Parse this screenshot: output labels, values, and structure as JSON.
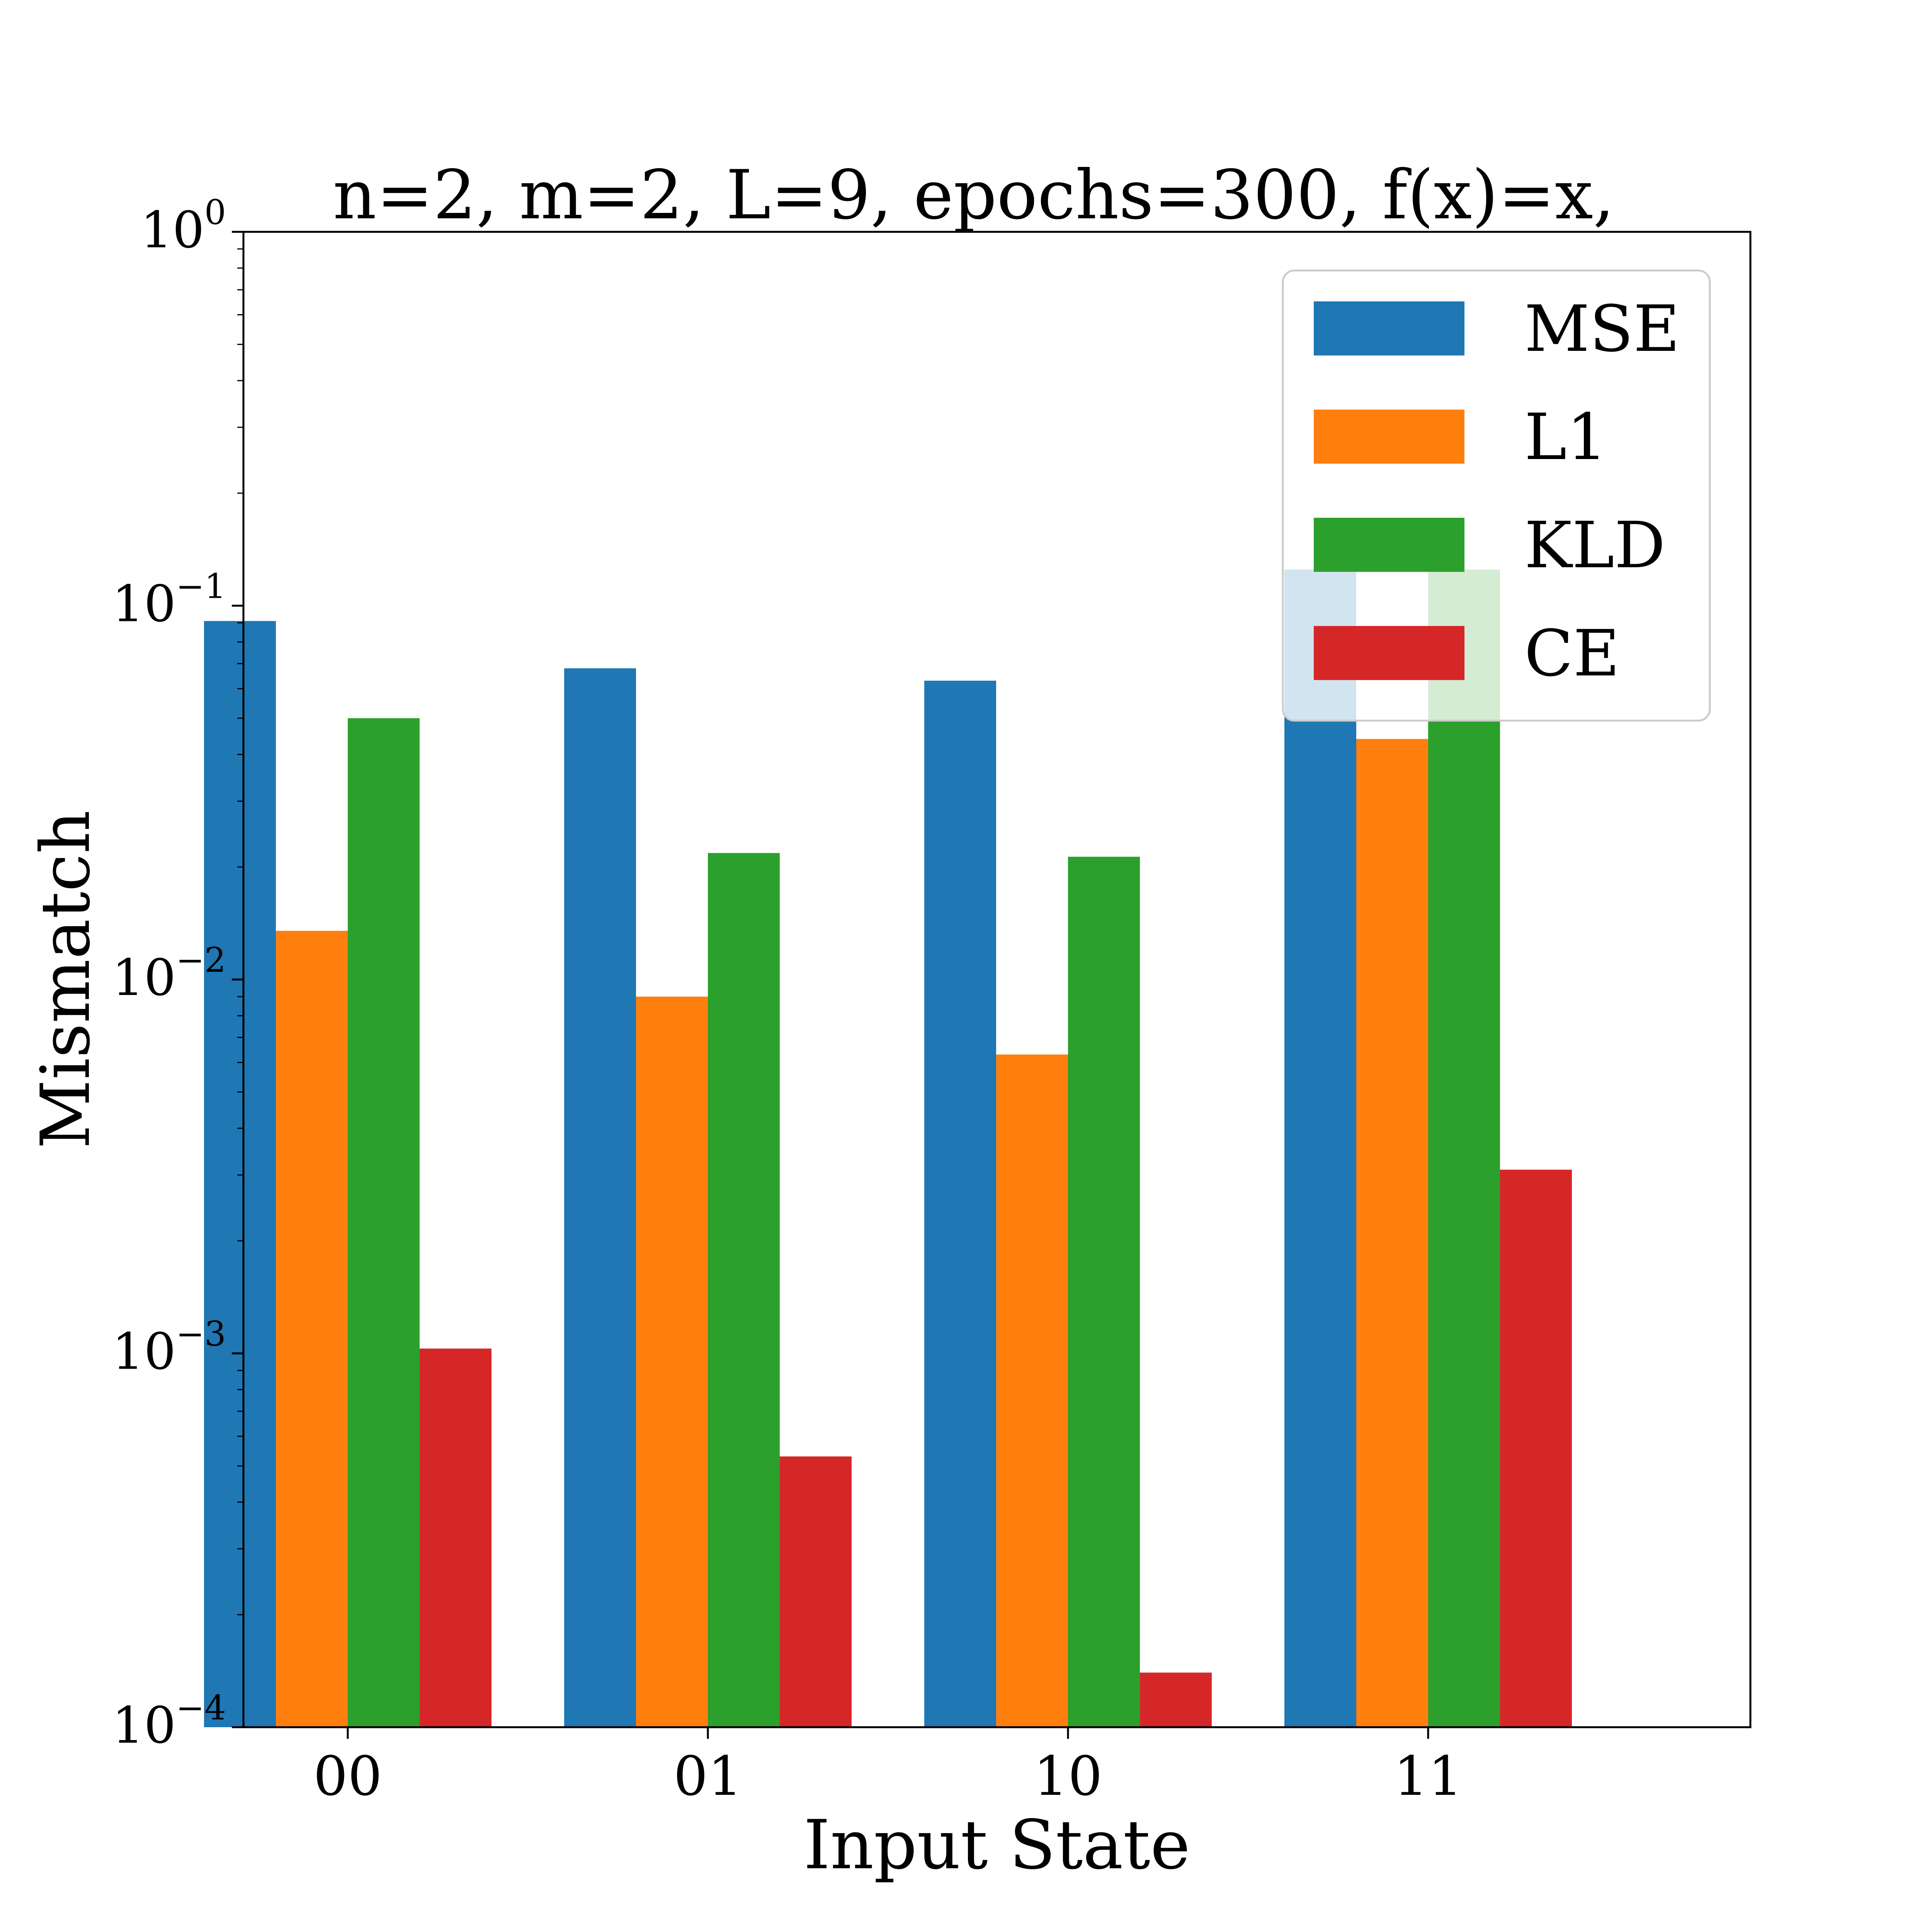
{
  "chart_data": {
    "type": "bar",
    "title": "n=2, m=2, L=9, epochs=300, f(x)=x,",
    "xlabel": "Input State",
    "ylabel": "Mismatch",
    "yscale": "log",
    "ylim": [
      0.0001,
      1
    ],
    "yticks": [
      {
        "value": 1,
        "base": "10",
        "exp": "0"
      },
      {
        "value": 0.1,
        "base": "10",
        "exp": "−1"
      },
      {
        "value": 0.01,
        "base": "10",
        "exp": "−2"
      },
      {
        "value": 0.001,
        "base": "10",
        "exp": "−3"
      },
      {
        "value": 0.0001,
        "base": "10",
        "exp": "−4"
      }
    ],
    "categories": [
      "00",
      "01",
      "10",
      "11"
    ],
    "series": [
      {
        "name": "MSE",
        "color": "#1f77b4",
        "values": [
          0.091,
          0.068,
          0.063,
          0.125
        ]
      },
      {
        "name": "L1",
        "color": "#ff7f0e",
        "values": [
          0.0135,
          0.009,
          0.0063,
          0.044
        ]
      },
      {
        "name": "KLD",
        "color": "#2ca02c",
        "values": [
          0.05,
          0.0218,
          0.0213,
          0.125
        ]
      },
      {
        "name": "CE",
        "color": "#d62728",
        "values": [
          0.00103,
          0.00053,
          0.00014,
          0.0031
        ]
      }
    ],
    "legend_position": "top-right",
    "grid": false
  }
}
